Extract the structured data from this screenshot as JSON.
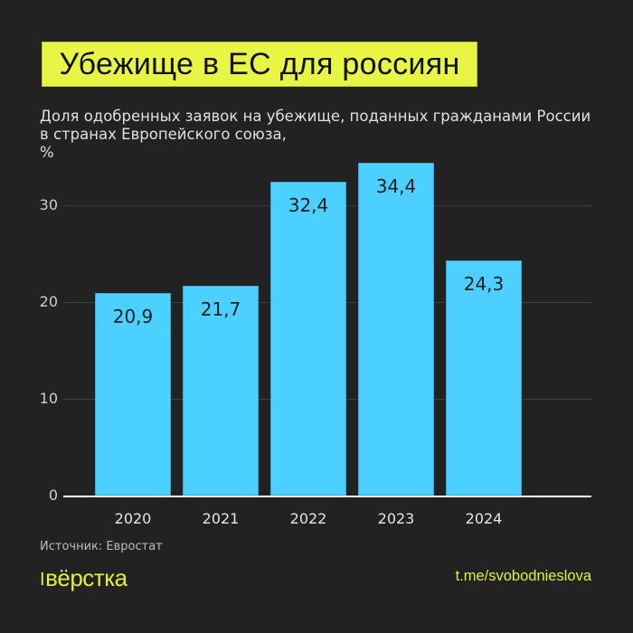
{
  "header": {
    "title": "Убежище в ЕС для россиян",
    "subtitle": "Доля одобренных заявок на убежище, поданных гражданами России в странах Европейского союза,",
    "unit": "%"
  },
  "footer": {
    "source": "Источник: Евростат",
    "logo": "вёрстка",
    "logo_prefix": "I",
    "link": "t.me/svobodnieslova"
  },
  "colors": {
    "background": "#222222",
    "bar": "#4bd0ff",
    "title_bg": "#e9f545",
    "brand": "#e2f03a"
  },
  "chart_data": {
    "type": "bar",
    "title": "Убежище в ЕС для россиян",
    "subtitle": "Доля одобренных заявок на убежище, поданных гражданами России в странах Европейского союза, %",
    "xlabel": "",
    "ylabel": "%",
    "categories": [
      "2020",
      "2021",
      "2022",
      "2023",
      "2024"
    ],
    "values": [
      20.9,
      21.7,
      32.4,
      34.4,
      24.3
    ],
    "value_labels": [
      "20,9",
      "21,7",
      "32,4",
      "34,4",
      "24,3"
    ],
    "yticks": [
      "0",
      "10",
      "20",
      "30"
    ],
    "ylim": [
      0,
      35
    ],
    "grid": true,
    "legend": null,
    "source": "Источник: Евростат"
  }
}
